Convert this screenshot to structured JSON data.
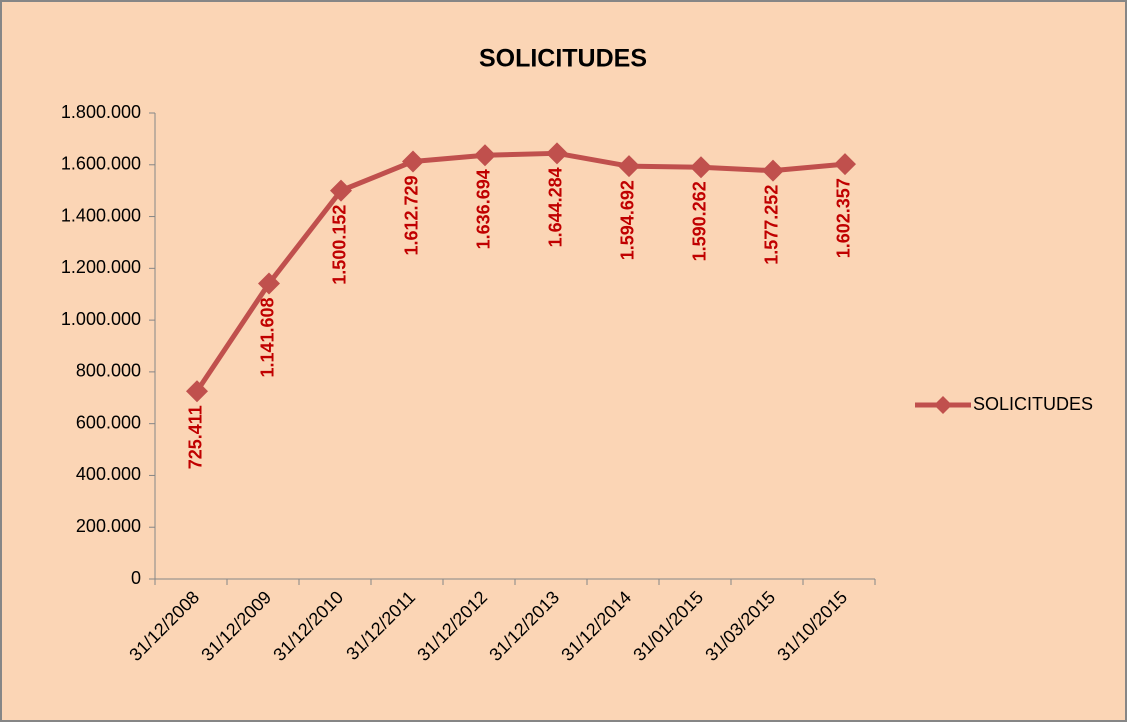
{
  "chart_data": {
    "type": "line",
    "title": "SOLICITUDES",
    "categories": [
      "31/12/2008",
      "31/12/2009",
      "31/12/2010",
      "31/12/2011",
      "31/12/2012",
      "31/12/2013",
      "31/12/2014",
      "31/01/2015",
      "31/03/2015",
      "31/10/2015"
    ],
    "series": [
      {
        "name": "SOLICITUDES",
        "color": "#c0504d",
        "values": [
          725411,
          1141608,
          1500152,
          1612729,
          1636694,
          1644284,
          1594692,
          1590262,
          1577252,
          1602357
        ],
        "value_labels": [
          "725.411",
          "1.141.608",
          "1.500.152",
          "1.612.729",
          "1.636.694",
          "1.644.284",
          "1.594.692",
          "1.590.262",
          "1.577.252",
          "1.602.357"
        ]
      }
    ],
    "ylim": [
      0,
      1800000
    ],
    "yticks": [
      0,
      {
        "value": 200000,
        "label": "200.000"
      },
      {
        "value": 400000,
        "label": "400.000"
      },
      {
        "value": 600000,
        "label": "600.000"
      },
      {
        "value": 800000,
        "label": "800.000"
      },
      {
        "value": 1000000,
        "label": "1.000.000"
      },
      {
        "value": 1200000,
        "label": "1.200.000"
      },
      {
        "value": 1400000,
        "label": "1.400.000"
      },
      {
        "value": 1600000,
        "label": "1.600.000"
      },
      {
        "value": 1800000,
        "label": "1.800.000"
      }
    ],
    "legend": "right",
    "label_color": "#c00000"
  }
}
